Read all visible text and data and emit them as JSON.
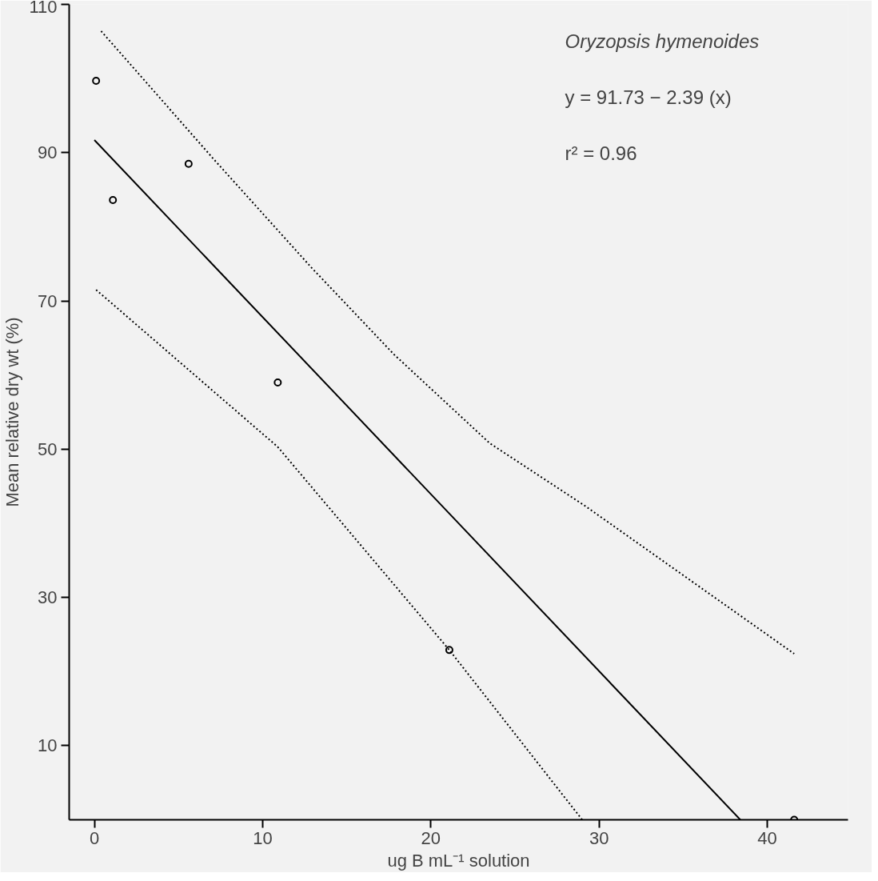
{
  "chart_data": {
    "type": "scatter",
    "xlabel": "ug B mL⁻¹ solution",
    "ylabel": "Mean relative dry wt (%)",
    "annotations": [
      "Oryzopsis hymenoides",
      "y = 91.73 − 2.39 (x)",
      "r² = 0.96"
    ],
    "xlim": [
      -1.5,
      44.8
    ],
    "ylim": [
      0,
      110
    ],
    "xticks": [
      0,
      10,
      20,
      30,
      40
    ],
    "yticks": [
      10,
      30,
      50,
      70,
      90,
      110
    ],
    "grid": false,
    "series": [
      {
        "color": "#000000",
        "marker": "circle",
        "x": [
          0.1,
          1.1,
          5.6,
          10.9,
          21.1,
          41.6
        ],
        "values": [
          99.7,
          83.6,
          88.5,
          59.0,
          22.9,
          0
        ]
      },
      {
        "type": "line",
        "color": "#000000",
        "line_style": "solid",
        "x": [
          0,
          38.4
        ],
        "values": [
          91.7,
          0
        ]
      },
      {
        "type": "line",
        "color": "#000000",
        "line_style": "dotted",
        "x": [
          0.4,
          7.1,
          12.9,
          17.8,
          23.5,
          29.2,
          41.6
        ],
        "values": [
          106.4,
          89.1,
          74.5,
          62.8,
          50.8,
          42.3,
          22.4
        ]
      },
      {
        "type": "line",
        "color": "#000000",
        "line_style": "dotted",
        "x": [
          0.1,
          10.9,
          21.1,
          29.0
        ],
        "values": [
          71.5,
          50.3,
          22.9,
          0
        ]
      }
    ]
  }
}
